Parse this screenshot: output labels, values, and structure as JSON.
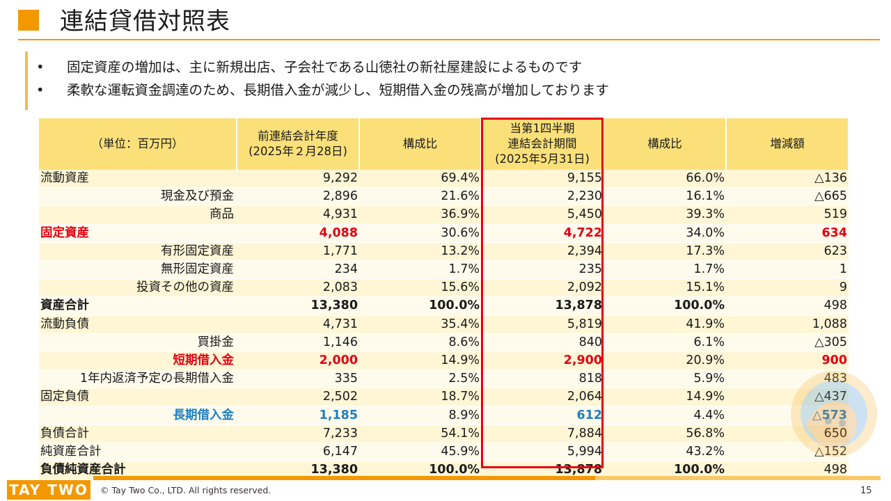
{
  "title": "連結貸借対照表",
  "bullets": [
    "固定資産の増加は、主に新規出店、子会社である山徳社の新社屋建設によるものです",
    "柔軟な運転資金調達のため、長期借入金が減少し、短期借入金の残高が増加しております"
  ],
  "table": {
    "headers": {
      "unit": "（単位：百万円）",
      "prev_line1": "前連結会計年度",
      "prev_line2": "(2025年２月28日)",
      "ratio1": "構成比",
      "curr_line1": "当第1四半期",
      "curr_line2": "連結会計期間",
      "curr_line3": "(2025年5月31日)",
      "ratio2": "構成比",
      "change": "増減額"
    },
    "rows": [
      {
        "label": "流動資産",
        "prev": "9,292",
        "r1": "69.4%",
        "curr": "9,155",
        "r2": "66.0%",
        "chg": "△136"
      },
      {
        "label": "現金及び預金",
        "prev": "2,896",
        "r1": "21.6%",
        "curr": "2,230",
        "r2": "16.1%",
        "chg": "△665"
      },
      {
        "label": "商品",
        "prev": "4,931",
        "r1": "36.9%",
        "curr": "5,450",
        "r2": "39.3%",
        "chg": "519"
      },
      {
        "label": "固定資産",
        "prev": "4,088",
        "r1": "30.6%",
        "curr": "4,722",
        "r2": "34.0%",
        "chg": "634"
      },
      {
        "label": "有形固定資産",
        "prev": "1,771",
        "r1": "13.2%",
        "curr": "2,394",
        "r2": "17.3%",
        "chg": "623"
      },
      {
        "label": "無形固定資産",
        "prev": "234",
        "r1": "1.7%",
        "curr": "235",
        "r2": "1.7%",
        "chg": "1"
      },
      {
        "label": "投資その他の資産",
        "prev": "2,083",
        "r1": "15.6%",
        "curr": "2,092",
        "r2": "15.1%",
        "chg": "9"
      },
      {
        "label": "資産合計",
        "prev": "13,380",
        "r1": "100.0%",
        "curr": "13,878",
        "r2": "100.0%",
        "chg": "498"
      },
      {
        "label": "流動負債",
        "prev": "4,731",
        "r1": "35.4%",
        "curr": "5,819",
        "r2": "41.9%",
        "chg": "1,088"
      },
      {
        "label": "買掛金",
        "prev": "1,146",
        "r1": "8.6%",
        "curr": "840",
        "r2": "6.1%",
        "chg": "△305"
      },
      {
        "label": "短期借入金",
        "prev": "2,000",
        "r1": "14.9%",
        "curr": "2,900",
        "r2": "20.9%",
        "chg": "900"
      },
      {
        "label": "1年内返済予定の長期借入金",
        "prev": "335",
        "r1": "2.5%",
        "curr": "818",
        "r2": "5.9%",
        "chg": "483"
      },
      {
        "label": "固定負債",
        "prev": "2,502",
        "r1": "18.7%",
        "curr": "2,064",
        "r2": "14.9%",
        "chg": "△437"
      },
      {
        "label": "長期借入金",
        "prev": "1,185",
        "r1": "8.9%",
        "curr": "612",
        "r2": "4.4%",
        "chg": "△573"
      },
      {
        "label": "負債合計",
        "prev": "7,233",
        "r1": "54.1%",
        "curr": "7,884",
        "r2": "56.8%",
        "chg": "650"
      },
      {
        "label": "純資産合計",
        "prev": "6,147",
        "r1": "45.9%",
        "curr": "5,994",
        "r2": "43.2%",
        "chg": "△152"
      },
      {
        "label": "負債純資産合計",
        "prev": "13,380",
        "r1": "100.0%",
        "curr": "13,878",
        "r2": "100.0%",
        "chg": "498"
      }
    ]
  },
  "footer": {
    "logo": "TAY TWO",
    "copyright": "© Tay Two Co., LTD. All rights reserved.",
    "page": "15"
  },
  "colors": {
    "accent": "#F39800",
    "header_bg": "#FBE07A",
    "highlight_red": "#E60012",
    "highlight_blue": "#1E7FC2"
  },
  "icons": [
    "title-square-icon",
    "mascot-watermark-icon"
  ]
}
